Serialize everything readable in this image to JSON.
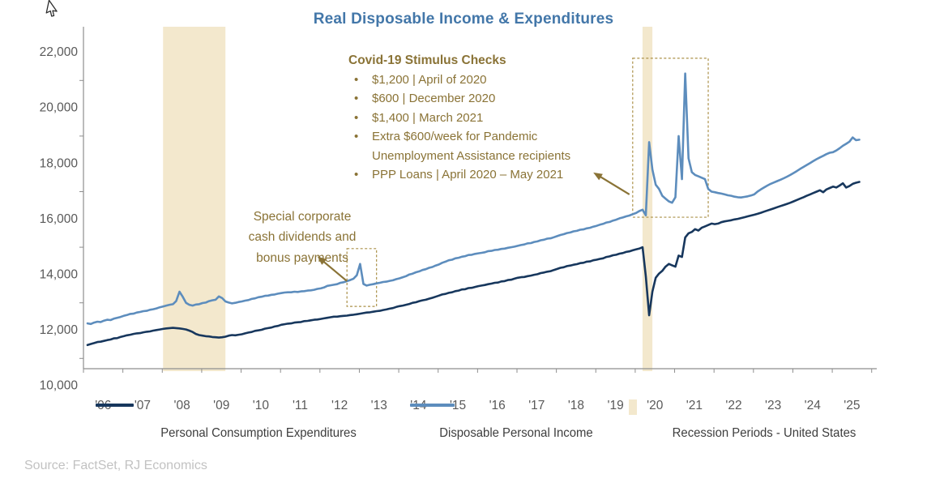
{
  "title": "Real Disposable Income & Expenditures",
  "source": "Source: FactSet, RJ Economics",
  "colors": {
    "title_blue": "#4377a9",
    "pce_line": "#17375d",
    "dpi_line": "#5d8dbd",
    "recession_band": "#f3e8cd",
    "annotation_gold": "#8a7336",
    "dashed_box_gold": "#ab9149",
    "axis_gray": "#8e8e8e",
    "tick_label_gray": "#595959",
    "source_gray": "#c2c2c2"
  },
  "annotations": {
    "stimulus": {
      "title": "Covid-19 Stimulus Checks",
      "bullets": [
        "$1,200 | April of 2020",
        "$600 | December 2020",
        "$1,400 | March 2021",
        "Extra $600/week for Pandemic Unemployment Assistance recipients",
        "PPP Loans | April 2020 – May 2021"
      ]
    },
    "dividends": {
      "lines": [
        "Special corporate",
        "cash dividends and",
        "bonus payments"
      ]
    }
  },
  "legend": {
    "position": "bottom",
    "items": [
      {
        "label": "Personal Consumption Expenditures",
        "marker": "navy-line"
      },
      {
        "label": "Disposable Personal Income",
        "marker": "blue-line"
      },
      {
        "label": "Recession Periods - United States",
        "marker": "tan-rect"
      }
    ]
  },
  "chart_data": {
    "type": "line",
    "title": "Real Disposable Income & Expenditures",
    "x_start": "2006-01",
    "x_months": 236,
    "ylim": [
      10000,
      22000
    ],
    "grid": false,
    "y_tick_values": [
      10000,
      12000,
      14000,
      16000,
      18000,
      20000,
      22000
    ],
    "y_tick_labels": [
      "10,000",
      "12,000",
      "14,000",
      "16,000",
      "18,000",
      "20,000",
      "22,000"
    ],
    "x_tick_labels": [
      "'06",
      "'07",
      "'08",
      "'09",
      "'10",
      "'11",
      "'12",
      "'13",
      "'14",
      "'15",
      "'16",
      "'17",
      "'18",
      "'19",
      "'20",
      "'21",
      "'22",
      "'23",
      "'24",
      "'25"
    ],
    "recession_bands": [
      {
        "start": "2007-12",
        "end": "2009-06"
      },
      {
        "start": "2020-02",
        "end": "2020-04"
      }
    ],
    "boxes": [
      {
        "from": "2012-08",
        "to": "2013-05",
        "value_top": 14950,
        "value_bottom": 12870,
        "note": "special-dividends-spike"
      },
      {
        "from": "2019-11",
        "to": "2021-10",
        "value_top": 21800,
        "value_bottom": 16080,
        "note": "covid-stimulus-spikes"
      }
    ],
    "arrows": [
      {
        "tail": {
          "date": "2012-08",
          "value": 13780
        },
        "head": {
          "date": "2011-11",
          "value": 14670
        }
      },
      {
        "tail": {
          "date": "2019-10",
          "value": 16900
        },
        "head": {
          "date": "2018-11",
          "value": 17690
        }
      }
    ],
    "series": [
      {
        "name": "Disposable Personal Income",
        "color": "#5d8dbd",
        "values": [
          12260,
          12240,
          12290,
          12320,
          12310,
          12360,
          12390,
          12380,
          12430,
          12460,
          12490,
          12530,
          12560,
          12600,
          12610,
          12650,
          12670,
          12700,
          12710,
          12750,
          12770,
          12800,
          12840,
          12870,
          12900,
          12930,
          12950,
          13060,
          13400,
          13220,
          13000,
          12930,
          12900,
          12940,
          12950,
          12990,
          13010,
          13060,
          13090,
          13110,
          13230,
          13170,
          13050,
          13010,
          12980,
          13000,
          13030,
          13050,
          13080,
          13100,
          13140,
          13160,
          13200,
          13220,
          13250,
          13260,
          13290,
          13300,
          13330,
          13350,
          13370,
          13380,
          13380,
          13400,
          13390,
          13410,
          13420,
          13440,
          13450,
          13470,
          13500,
          13520,
          13550,
          13610,
          13630,
          13650,
          13670,
          13720,
          13740,
          13780,
          13820,
          13870,
          13990,
          14400,
          13680,
          13620,
          13650,
          13670,
          13700,
          13720,
          13750,
          13760,
          13790,
          13810,
          13850,
          13880,
          13920,
          13960,
          14020,
          14050,
          14100,
          14130,
          14180,
          14210,
          14260,
          14290,
          14340,
          14380,
          14440,
          14480,
          14530,
          14550,
          14600,
          14620,
          14660,
          14680,
          14720,
          14730,
          14760,
          14780,
          14800,
          14820,
          14860,
          14870,
          14900,
          14910,
          14940,
          14950,
          14980,
          15000,
          15020,
          15050,
          15080,
          15100,
          15140,
          15150,
          15190,
          15210,
          15250,
          15270,
          15310,
          15320,
          15360,
          15400,
          15440,
          15470,
          15510,
          15530,
          15570,
          15590,
          15630,
          15640,
          15680,
          15700,
          15740,
          15770,
          15810,
          15840,
          15890,
          15910,
          15960,
          15990,
          16040,
          16070,
          16110,
          16140,
          16190,
          16230,
          16300,
          16350,
          16150,
          18780,
          17800,
          17250,
          17100,
          16850,
          16750,
          16650,
          16600,
          16800,
          19000,
          17450,
          21250,
          18200,
          17700,
          17600,
          17550,
          17500,
          17450,
          17100,
          17000,
          16980,
          16950,
          16930,
          16900,
          16870,
          16850,
          16820,
          16800,
          16790,
          16810,
          16830,
          16860,
          16900,
          17000,
          17080,
          17150,
          17220,
          17280,
          17330,
          17380,
          17430,
          17480,
          17540,
          17600,
          17670,
          17740,
          17820,
          17890,
          17960,
          18030,
          18100,
          18170,
          18230,
          18290,
          18350,
          18400,
          18420,
          18480,
          18560,
          18650,
          18720,
          18800,
          18950,
          18850,
          18870
        ]
      },
      {
        "name": "Personal Consumption Expenditures",
        "color": "#17375d",
        "values": [
          11480,
          11520,
          11550,
          11590,
          11600,
          11630,
          11660,
          11680,
          11720,
          11730,
          11770,
          11800,
          11830,
          11850,
          11880,
          11900,
          11910,
          11940,
          11960,
          11970,
          12000,
          12020,
          12040,
          12060,
          12080,
          12090,
          12100,
          12090,
          12080,
          12060,
          12040,
          12000,
          11950,
          11880,
          11840,
          11820,
          11800,
          11790,
          11770,
          11760,
          11750,
          11760,
          11780,
          11820,
          11840,
          11830,
          11850,
          11870,
          11900,
          11930,
          11950,
          11990,
          12010,
          12030,
          12070,
          12090,
          12110,
          12150,
          12170,
          12210,
          12230,
          12250,
          12260,
          12290,
          12300,
          12310,
          12340,
          12350,
          12370,
          12390,
          12400,
          12420,
          12440,
          12460,
          12480,
          12500,
          12500,
          12520,
          12530,
          12540,
          12560,
          12570,
          12590,
          12610,
          12630,
          12650,
          12660,
          12680,
          12700,
          12710,
          12740,
          12760,
          12790,
          12810,
          12850,
          12880,
          12900,
          12930,
          12960,
          13000,
          13020,
          13060,
          13090,
          13110,
          13150,
          13180,
          13220,
          13260,
          13300,
          13320,
          13360,
          13380,
          13420,
          13440,
          13480,
          13490,
          13530,
          13540,
          13570,
          13600,
          13620,
          13640,
          13670,
          13690,
          13720,
          13730,
          13770,
          13780,
          13820,
          13830,
          13870,
          13900,
          13920,
          13930,
          13960,
          13980,
          14010,
          14030,
          14070,
          14090,
          14120,
          14140,
          14180,
          14220,
          14260,
          14280,
          14320,
          14340,
          14370,
          14390,
          14430,
          14440,
          14480,
          14490,
          14530,
          14550,
          14580,
          14600,
          14650,
          14670,
          14710,
          14730,
          14770,
          14790,
          14830,
          14850,
          14890,
          14920,
          14950,
          15000,
          13950,
          12550,
          13400,
          13900,
          14050,
          14150,
          14300,
          14400,
          14350,
          14300,
          14700,
          14650,
          15350,
          15500,
          15550,
          15650,
          15600,
          15700,
          15750,
          15800,
          15850,
          15830,
          15850,
          15900,
          15930,
          15950,
          15970,
          16000,
          16020,
          16050,
          16080,
          16110,
          16140,
          16170,
          16200,
          16240,
          16280,
          16320,
          16360,
          16400,
          16440,
          16480,
          16520,
          16560,
          16600,
          16650,
          16700,
          16750,
          16800,
          16850,
          16900,
          16950,
          17000,
          17050,
          16980,
          17080,
          17130,
          17180,
          17150,
          17220,
          17300,
          17150,
          17200,
          17280,
          17320,
          17350
        ]
      }
    ]
  }
}
